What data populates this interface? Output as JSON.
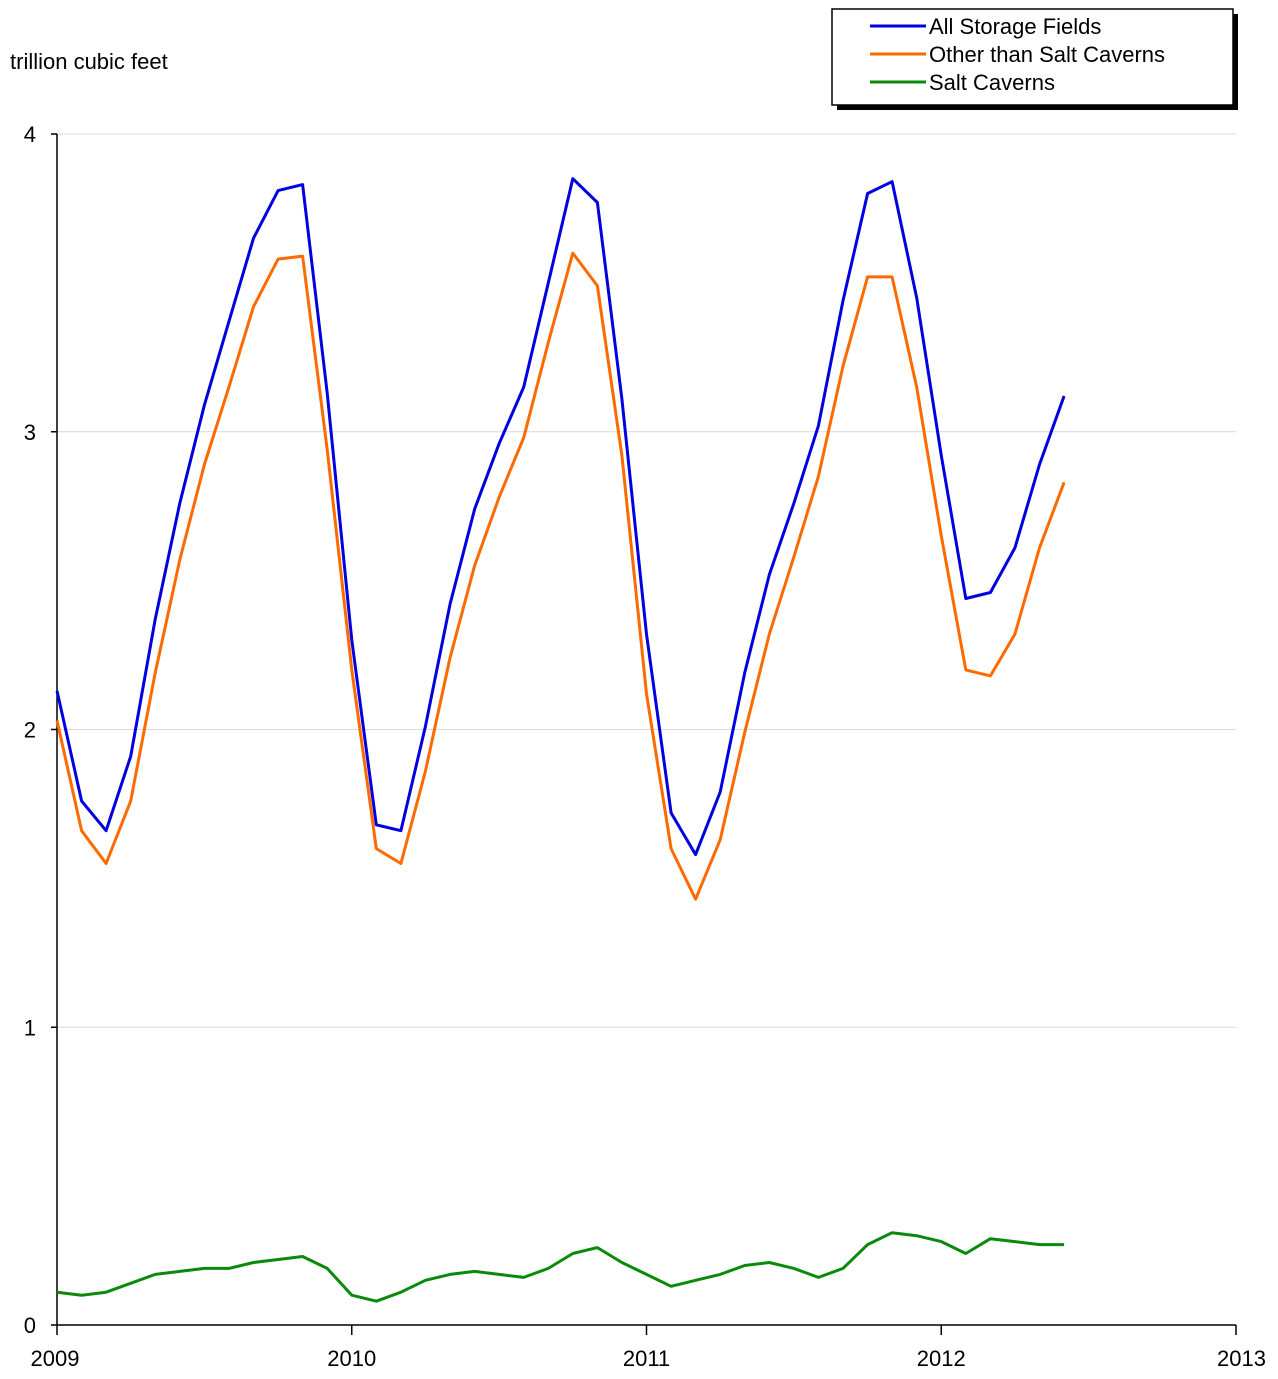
{
  "chart_data": {
    "type": "line",
    "ylabel": "trillion cubic feet",
    "xlabel": "",
    "ylim": [
      0,
      4
    ],
    "y_ticks": [
      "0",
      "1",
      "2",
      "3",
      "4"
    ],
    "x_range": [
      2009,
      2013
    ],
    "x_ticks": [
      "2009",
      "2010",
      "2011",
      "2012",
      "2013"
    ],
    "x_start": 2009,
    "grid": true,
    "legend_position": "top-right",
    "series": [
      {
        "name": "All Storage Fields",
        "color": "#0000e0",
        "values": [
          2.13,
          1.76,
          1.66,
          1.91,
          2.37,
          2.76,
          3.09,
          3.37,
          3.65,
          3.81,
          3.83,
          3.13,
          2.3,
          1.68,
          1.66,
          2.01,
          2.42,
          2.74,
          2.96,
          3.15,
          3.5,
          3.85,
          3.77,
          3.11,
          2.32,
          1.72,
          1.58,
          1.79,
          2.19,
          2.52,
          2.76,
          3.02,
          3.44,
          3.8,
          3.84,
          3.45,
          2.92,
          2.44,
          2.46,
          2.61,
          2.89,
          3.12
        ]
      },
      {
        "name": "Other than Salt Caverns",
        "color": "#ff6a00",
        "values": [
          2.03,
          1.66,
          1.55,
          1.76,
          2.19,
          2.57,
          2.89,
          3.15,
          3.42,
          3.58,
          3.59,
          2.94,
          2.2,
          1.6,
          1.55,
          1.86,
          2.24,
          2.55,
          2.78,
          2.98,
          3.3,
          3.6,
          3.49,
          2.92,
          2.12,
          1.6,
          1.43,
          1.63,
          1.99,
          2.32,
          2.58,
          2.85,
          3.22,
          3.52,
          3.52,
          3.15,
          2.65,
          2.2,
          2.18,
          2.32,
          2.61,
          2.83
        ]
      },
      {
        "name": "Salt Caverns",
        "color": "#0a8a0a",
        "values": [
          0.11,
          0.1,
          0.11,
          0.14,
          0.17,
          0.18,
          0.19,
          0.19,
          0.21,
          0.22,
          0.23,
          0.19,
          0.1,
          0.08,
          0.11,
          0.15,
          0.17,
          0.18,
          0.17,
          0.16,
          0.19,
          0.24,
          0.26,
          0.21,
          0.17,
          0.13,
          0.15,
          0.17,
          0.2,
          0.21,
          0.19,
          0.16,
          0.19,
          0.27,
          0.31,
          0.3,
          0.28,
          0.24,
          0.29,
          0.28,
          0.27,
          0.27
        ]
      }
    ]
  }
}
